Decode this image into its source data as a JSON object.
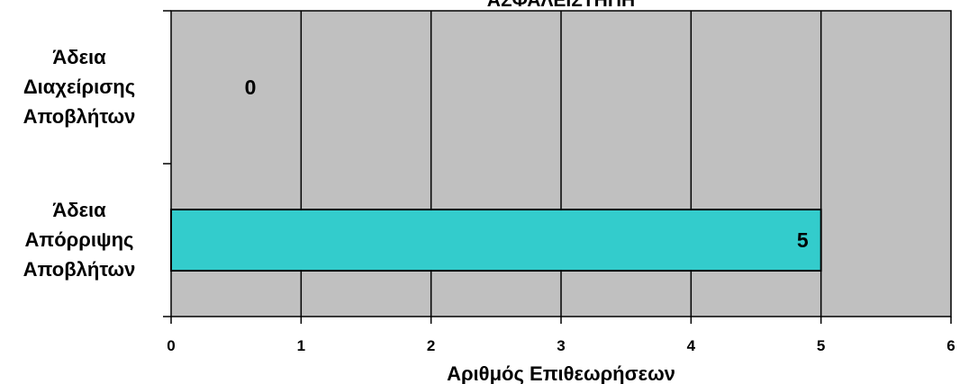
{
  "chart_data": {
    "type": "bar",
    "orientation": "horizontal",
    "title": "ΆΣΦΑΛΕΙΣΤΗΠΗ",
    "xlabel": "Αριθμός Επιθεωρήσεων",
    "ylabel": "",
    "xlim": [
      0,
      6
    ],
    "x_ticks": [
      "0",
      "1",
      "2",
      "3",
      "4",
      "5",
      "6"
    ],
    "grid": true,
    "categories": [
      [
        "Άδεια",
        "Διαχείρισης",
        "Αποβλήτων"
      ],
      [
        "Άδεια",
        "Απόρριψης",
        "Αποβλήτων"
      ]
    ],
    "values": [
      0,
      5
    ],
    "data_labels": [
      "0",
      "5"
    ],
    "colors": {
      "plot_background": "#c0c0c0",
      "bar_fill": "#33cccc",
      "bar_stroke": "#000000",
      "gridline": "#000000"
    }
  }
}
